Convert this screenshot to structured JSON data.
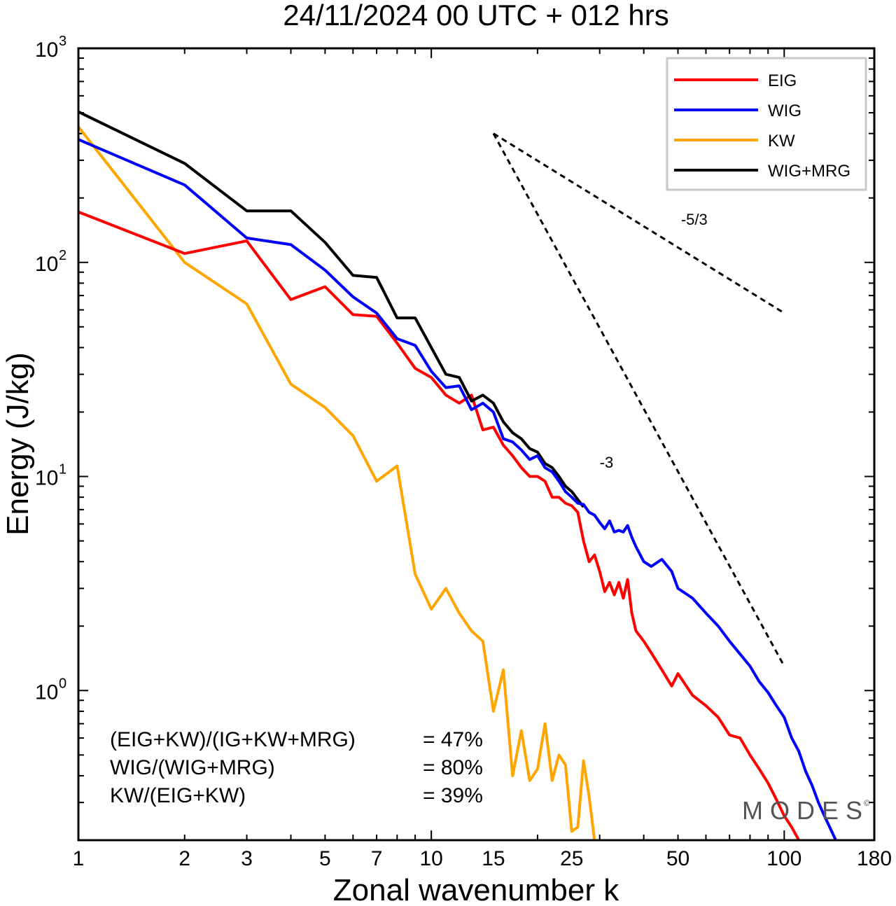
{
  "chart_data": {
    "type": "line",
    "title": "24/11/2024  00 UTC  + 012 hrs",
    "xlabel": "Zonal wavenumber k",
    "ylabel": "Energy (J/kg)",
    "x_scale": "log",
    "y_scale": "log",
    "xlim": [
      1,
      180
    ],
    "ylim": [
      0.2,
      1000
    ],
    "x_ticks": [
      1,
      2,
      3,
      5,
      7,
      10,
      15,
      25,
      50,
      100,
      180
    ],
    "y_ticks": [
      {
        "base": "10",
        "exp": "3",
        "value": 1000
      },
      {
        "base": "10",
        "exp": "2",
        "value": 100
      },
      {
        "base": "10",
        "exp": "1",
        "value": 10
      },
      {
        "base": "10",
        "exp": "0",
        "value": 1
      }
    ],
    "legend_position": "top-right",
    "series": [
      {
        "name": "EIG",
        "color": "#ff0000",
        "points": [
          [
            1,
            172
          ],
          [
            2,
            110
          ],
          [
            3,
            126
          ],
          [
            4,
            67
          ],
          [
            5,
            77
          ],
          [
            6,
            57
          ],
          [
            7,
            56
          ],
          [
            8,
            42
          ],
          [
            9,
            32
          ],
          [
            10,
            29
          ],
          [
            11,
            24
          ],
          [
            12,
            22
          ],
          [
            13,
            24
          ],
          [
            14,
            16.5
          ],
          [
            15,
            17
          ],
          [
            16,
            14
          ],
          [
            17,
            12.5
          ],
          [
            18,
            11
          ],
          [
            19,
            10
          ],
          [
            20,
            10
          ],
          [
            21,
            9.5
          ],
          [
            22,
            8
          ],
          [
            23,
            8
          ],
          [
            24,
            7.5
          ],
          [
            25,
            7.3
          ],
          [
            26,
            6.8
          ],
          [
            27,
            5
          ],
          [
            28,
            4
          ],
          [
            29,
            4.3
          ],
          [
            30,
            3.6
          ],
          [
            31,
            2.9
          ],
          [
            32,
            3.2
          ],
          [
            33,
            2.8
          ],
          [
            34,
            3.2
          ],
          [
            35,
            2.7
          ],
          [
            36,
            3.3
          ],
          [
            37,
            2.3
          ],
          [
            38,
            1.9
          ],
          [
            40,
            1.7
          ],
          [
            42,
            1.5
          ],
          [
            45,
            1.25
          ],
          [
            48,
            1.05
          ],
          [
            50,
            1.2
          ],
          [
            55,
            0.95
          ],
          [
            60,
            0.85
          ],
          [
            65,
            0.75
          ],
          [
            70,
            0.62
          ],
          [
            75,
            0.6
          ],
          [
            80,
            0.5
          ],
          [
            85,
            0.43
          ],
          [
            90,
            0.37
          ],
          [
            95,
            0.31
          ],
          [
            100,
            0.26
          ],
          [
            105,
            0.23
          ],
          [
            110,
            0.2
          ]
        ]
      },
      {
        "name": "WIG",
        "color": "#0000ff",
        "points": [
          [
            1,
            375
          ],
          [
            2,
            230
          ],
          [
            3,
            130
          ],
          [
            4,
            121
          ],
          [
            5,
            92
          ],
          [
            6,
            69
          ],
          [
            7,
            58
          ],
          [
            8,
            44
          ],
          [
            9,
            41
          ],
          [
            10,
            31
          ],
          [
            11,
            26
          ],
          [
            12,
            26.5
          ],
          [
            13,
            20.5
          ],
          [
            14,
            22
          ],
          [
            15,
            20
          ],
          [
            16,
            15
          ],
          [
            17,
            14.5
          ],
          [
            18,
            13.3
          ],
          [
            19,
            12
          ],
          [
            20,
            12.5
          ],
          [
            21,
            11
          ],
          [
            22,
            10.5
          ],
          [
            23,
            9.5
          ],
          [
            24,
            8.5
          ],
          [
            25,
            8
          ],
          [
            26,
            7.5
          ],
          [
            27,
            7.4
          ],
          [
            28,
            6.8
          ],
          [
            29,
            6.6
          ],
          [
            30,
            6.1
          ],
          [
            31,
            5.7
          ],
          [
            32,
            6.2
          ],
          [
            33,
            5.5
          ],
          [
            34,
            5.6
          ],
          [
            35,
            5.5
          ],
          [
            36,
            5.9
          ],
          [
            37,
            5.2
          ],
          [
            38,
            4.7
          ],
          [
            40,
            4.0
          ],
          [
            42,
            3.8
          ],
          [
            45,
            4.1
          ],
          [
            48,
            3.6
          ],
          [
            50,
            3.0
          ],
          [
            55,
            2.7
          ],
          [
            60,
            2.3
          ],
          [
            65,
            2.0
          ],
          [
            70,
            1.7
          ],
          [
            75,
            1.48
          ],
          [
            80,
            1.3
          ],
          [
            85,
            1.1
          ],
          [
            90,
            0.98
          ],
          [
            95,
            0.85
          ],
          [
            100,
            0.75
          ],
          [
            105,
            0.6
          ],
          [
            110,
            0.52
          ],
          [
            115,
            0.42
          ],
          [
            120,
            0.36
          ],
          [
            125,
            0.3
          ],
          [
            130,
            0.26
          ],
          [
            140,
            0.2
          ]
        ]
      },
      {
        "name": "KW",
        "color": "#ffa500",
        "points": [
          [
            1,
            430
          ],
          [
            2,
            100
          ],
          [
            3,
            64
          ],
          [
            4,
            27
          ],
          [
            5,
            21
          ],
          [
            6,
            15.5
          ],
          [
            7,
            9.5
          ],
          [
            8,
            11.2
          ],
          [
            9,
            3.5
          ],
          [
            10,
            2.4
          ],
          [
            11,
            3.0
          ],
          [
            12,
            2.3
          ],
          [
            13,
            1.9
          ],
          [
            14,
            1.7
          ],
          [
            15,
            0.8
          ],
          [
            16,
            1.25
          ],
          [
            17,
            0.4
          ],
          [
            18,
            0.65
          ],
          [
            19,
            0.38
          ],
          [
            20,
            0.43
          ],
          [
            21,
            0.7
          ],
          [
            22,
            0.38
          ],
          [
            23,
            0.5
          ],
          [
            24,
            0.45
          ],
          [
            25,
            0.22
          ],
          [
            26,
            0.23
          ],
          [
            27,
            0.47
          ],
          [
            28,
            0.32
          ],
          [
            29,
            0.2
          ]
        ]
      },
      {
        "name": "WIG+MRG",
        "color": "#000000",
        "points": [
          [
            1,
            505
          ],
          [
            2,
            290
          ],
          [
            3,
            174
          ],
          [
            4,
            174
          ],
          [
            5,
            124
          ],
          [
            6,
            87
          ],
          [
            7,
            85
          ],
          [
            8,
            55
          ],
          [
            9,
            55
          ],
          [
            10,
            40
          ],
          [
            11,
            30
          ],
          [
            12,
            29
          ],
          [
            13,
            22.5
          ],
          [
            14,
            24
          ],
          [
            15,
            22
          ],
          [
            16,
            18
          ],
          [
            17,
            16
          ],
          [
            18,
            15
          ],
          [
            19,
            13.5
          ],
          [
            20,
            13
          ],
          [
            21,
            11.5
          ],
          [
            22,
            11
          ],
          [
            23,
            10
          ],
          [
            24,
            9
          ],
          [
            25,
            8.5
          ],
          [
            26,
            7.8
          ],
          [
            27,
            7.2
          ]
        ]
      }
    ],
    "reference_lines": [
      {
        "label": "-5/3",
        "from": [
          15,
          400
        ],
        "to": [
          100,
          58
        ]
      },
      {
        "label": "-3",
        "from": [
          15,
          400
        ],
        "to": [
          100,
          1.3
        ]
      }
    ],
    "ratios": [
      {
        "label": "(EIG+KW)/(IG+KW+MRG)",
        "value": "= 47%"
      },
      {
        "label": "WIG/(WIG+MRG)",
        "value": "= 80%"
      },
      {
        "label": "KW/(EIG+KW)",
        "value": "= 39%"
      }
    ],
    "logo": "MODES"
  }
}
